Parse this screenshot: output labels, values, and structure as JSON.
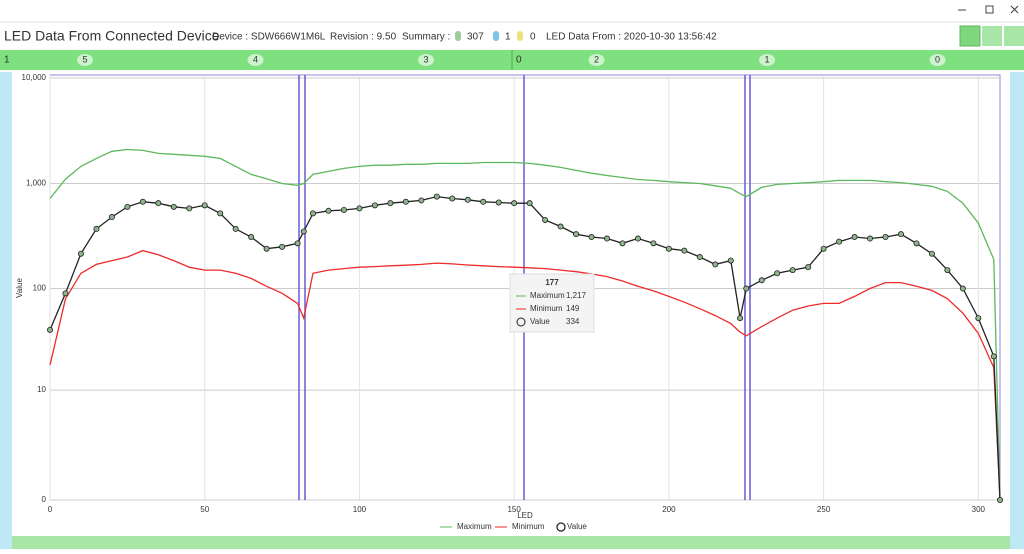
{
  "header": {
    "title": "LED Data From Connected Device",
    "device": "Device : SDW666W1M6L",
    "revision": "Revision : 9.50",
    "summary": "Summary :",
    "counts": [
      307,
      1,
      0
    ],
    "led_data_from": "LED Data From : 2020-10-30 13:56:42"
  },
  "group_labels": [
    "1",
    "0"
  ],
  "segments": [
    "5",
    "4",
    "3",
    "2",
    "1",
    "0"
  ],
  "chart_data": {
    "type": "line",
    "y_label": "Value",
    "x_label": "LED",
    "yscale": "log",
    "grid": true,
    "legend": "bottom",
    "xlim": [
      0,
      307
    ],
    "xticks": [
      0,
      50,
      100,
      150,
      200,
      250,
      300
    ],
    "ylim": [
      0,
      10000
    ],
    "yticks": [
      0,
      10,
      100,
      {
        "value": 1000,
        "label": "1,000"
      },
      {
        "value": 10000,
        "label": "10,000"
      }
    ],
    "x": [
      0,
      5,
      10,
      15,
      20,
      25,
      30,
      35,
      40,
      45,
      50,
      55,
      60,
      65,
      70,
      75,
      80,
      82,
      85,
      90,
      95,
      100,
      105,
      110,
      115,
      120,
      125,
      130,
      135,
      140,
      145,
      150,
      155,
      160,
      165,
      170,
      175,
      180,
      185,
      190,
      195,
      200,
      205,
      210,
      215,
      220,
      223,
      225,
      230,
      235,
      240,
      245,
      250,
      255,
      260,
      265,
      270,
      275,
      280,
      285,
      290,
      295,
      300,
      305,
      307
    ],
    "series": [
      {
        "name": "Maximum",
        "color": "#5cb85c",
        "values": [
          720,
          1100,
          1450,
          1730,
          2020,
          2100,
          2060,
          1930,
          1890,
          1850,
          1810,
          1730,
          1450,
          1220,
          1110,
          1000,
          960,
          1000,
          1220,
          1300,
          1390,
          1450,
          1490,
          1490,
          1520,
          1520,
          1550,
          1550,
          1550,
          1580,
          1580,
          1580,
          1550,
          1490,
          1420,
          1330,
          1250,
          1190,
          1140,
          1090,
          1070,
          1040,
          1020,
          1000,
          950,
          900,
          800,
          750,
          920,
          980,
          1000,
          1020,
          1040,
          1070,
          1070,
          1070,
          1040,
          1020,
          980,
          940,
          840,
          650,
          420,
          190,
          0
        ]
      },
      {
        "name": "Minimum",
        "color": "#ee2a2a",
        "values": [
          18,
          80,
          140,
          170,
          185,
          200,
          230,
          210,
          185,
          160,
          150,
          150,
          140,
          125,
          105,
          90,
          72,
          52,
          140,
          150,
          155,
          160,
          162,
          165,
          167,
          170,
          175,
          172,
          168,
          165,
          162,
          160,
          158,
          155,
          150,
          145,
          138,
          130,
          118,
          105,
          95,
          84,
          74,
          64,
          55,
          46,
          38,
          35,
          43,
          52,
          62,
          68,
          72,
          72,
          84,
          100,
          114,
          114,
          105,
          96,
          80,
          58,
          37,
          17,
          0
        ]
      },
      {
        "name": "Value",
        "color": "#222222",
        "marker_fill": "#8fb58f",
        "values": [
          40,
          90,
          215,
          370,
          480,
          600,
          670,
          650,
          600,
          580,
          620,
          520,
          370,
          310,
          240,
          250,
          270,
          350,
          520,
          550,
          560,
          580,
          620,
          650,
          670,
          690,
          750,
          720,
          700,
          670,
          660,
          650,
          650,
          450,
          390,
          330,
          310,
          300,
          270,
          300,
          270,
          240,
          230,
          200,
          170,
          185,
          52,
          100,
          120,
          140,
          150,
          160,
          240,
          280,
          310,
          300,
          310,
          330,
          270,
          215,
          150,
          100,
          52,
          22,
          0
        ]
      }
    ],
    "tooltip": {
      "title": "177",
      "rows": [
        {
          "name": "Maximum",
          "value": "1,217"
        },
        {
          "name": "Minimum",
          "value": "149"
        },
        {
          "name": "Value",
          "value": "334"
        }
      ]
    }
  }
}
